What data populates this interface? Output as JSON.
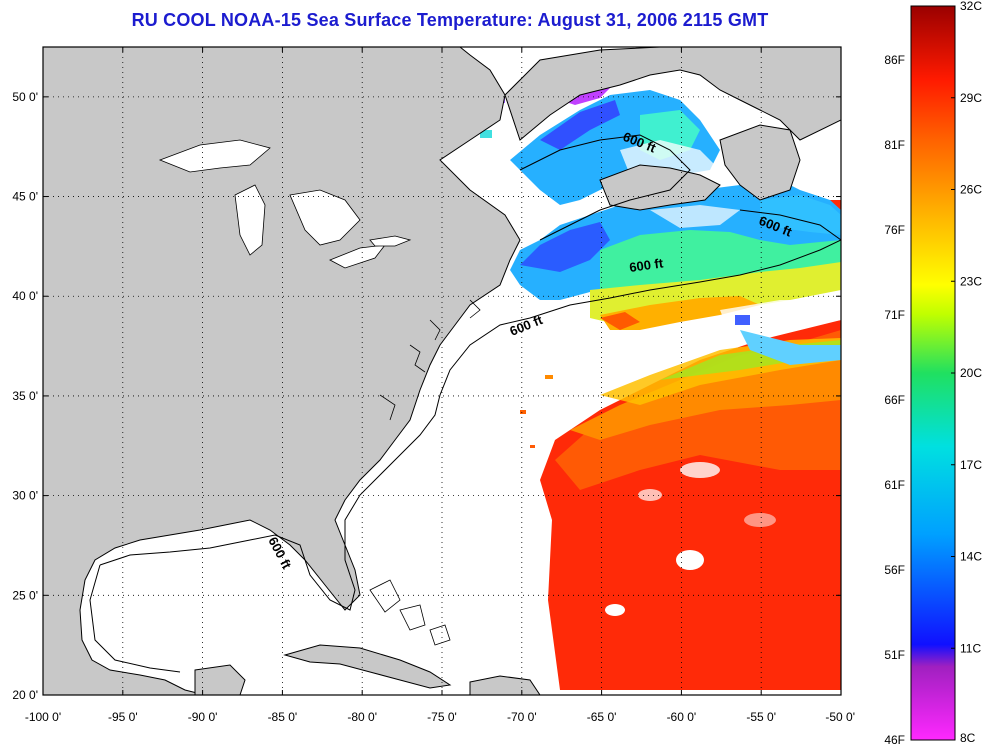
{
  "title": "RU COOL  NOAA-15  Sea Surface Temperature:  August 31, 2006 2115 GMT",
  "map": {
    "lat_ticks": [
      "20 0'",
      "25 0'",
      "30 0'",
      "35 0'",
      "40 0'",
      "45 0'",
      "50 0'"
    ],
    "lon_ticks": [
      "-100 0'",
      "-95 0'",
      "-90 0'",
      "-85 0'",
      "-80 0'",
      "-75 0'",
      "-70 0'",
      "-65 0'",
      "-60 0'",
      "-55 0'",
      "-50 0'"
    ],
    "lat_range": [
      20,
      52.5
    ],
    "lon_range": [
      -100,
      -50
    ],
    "land_color": "#c8c8c8",
    "grid": "dotted",
    "contours": [
      {
        "label": "600 ft",
        "location": "Gulf of St. Lawrence"
      },
      {
        "label": "600 ft",
        "location": "Scotian Shelf"
      },
      {
        "label": "600 ft",
        "location": "Grand Banks"
      },
      {
        "label": "600 ft",
        "location": "Mid-Atlantic shelf break"
      },
      {
        "label": "600 ft",
        "location": "West Florida shelf"
      }
    ]
  },
  "colorbar": {
    "fahrenheit_labels": [
      "86F",
      "81F",
      "76F",
      "71F",
      "66F",
      "61F",
      "56F",
      "51F",
      "46F"
    ],
    "celsius_labels": [
      "32C",
      "29C",
      "26C",
      "23C",
      "20C",
      "17C",
      "14C",
      "11C",
      "8C"
    ],
    "range_c": [
      8,
      32
    ],
    "colors": [
      "#ff28ff",
      "#a020c0",
      "#1010ff",
      "#00a0ff",
      "#00e0e0",
      "#20e060",
      "#c0ff00",
      "#ffff00",
      "#ffb000",
      "#ff6000",
      "#ff1a00",
      "#9a0000"
    ]
  }
}
